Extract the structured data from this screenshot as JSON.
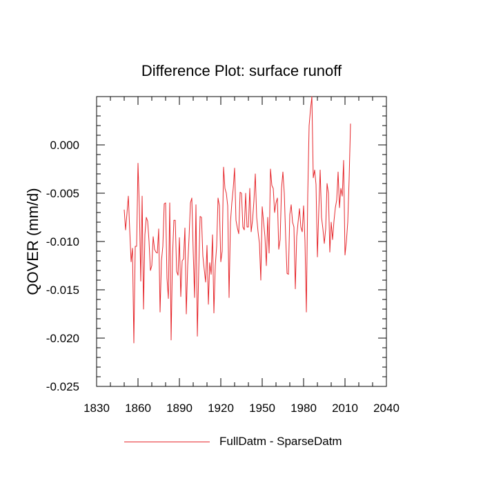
{
  "chart_data": {
    "type": "line",
    "title": "Difference Plot: surface runoff",
    "xlabel": "",
    "ylabel": "QOVER  (mm/d)",
    "xlim": [
      1830,
      2040
    ],
    "ylim": [
      -0.025,
      0.005
    ],
    "xticks": [
      1830,
      1860,
      1890,
      1920,
      1950,
      1980,
      2010,
      2040
    ],
    "yticks": [
      -0.025,
      -0.02,
      -0.015,
      -0.01,
      -0.005,
      0.0
    ],
    "ytick_labels": [
      "-0.025",
      "-0.020",
      "-0.015",
      "-0.010",
      "-0.005",
      "0.000"
    ],
    "grid": false,
    "legend_position": "bottom-center",
    "series": [
      {
        "name": "FullDatm - SparseDatm",
        "color": "#e6262b",
        "x": [
          1850,
          1851,
          1852,
          1853,
          1854,
          1855,
          1856,
          1857,
          1858,
          1859,
          1860,
          1861,
          1862,
          1863,
          1864,
          1865,
          1866,
          1867,
          1868,
          1869,
          1870,
          1871,
          1872,
          1873,
          1874,
          1875,
          1876,
          1877,
          1878,
          1879,
          1880,
          1881,
          1882,
          1883,
          1884,
          1885,
          1886,
          1887,
          1888,
          1889,
          1890,
          1891,
          1892,
          1893,
          1894,
          1895,
          1896,
          1897,
          1898,
          1899,
          1900,
          1901,
          1902,
          1903,
          1904,
          1905,
          1906,
          1907,
          1908,
          1909,
          1910,
          1911,
          1912,
          1913,
          1914,
          1915,
          1916,
          1917,
          1918,
          1919,
          1920,
          1921,
          1922,
          1923,
          1924,
          1925,
          1926,
          1927,
          1928,
          1929,
          1930,
          1931,
          1932,
          1933,
          1934,
          1935,
          1936,
          1937,
          1938,
          1939,
          1940,
          1941,
          1942,
          1943,
          1944,
          1945,
          1946,
          1947,
          1948,
          1949,
          1950,
          1951,
          1952,
          1953,
          1954,
          1955,
          1956,
          1957,
          1958,
          1959,
          1960,
          1961,
          1962,
          1963,
          1964,
          1965,
          1966,
          1967,
          1968,
          1969,
          1970,
          1971,
          1972,
          1973,
          1974,
          1975,
          1976,
          1977,
          1978,
          1979,
          1980,
          1981,
          1982,
          1983,
          1984,
          1985,
          1986,
          1987,
          1988,
          1989,
          1990,
          1991,
          1992,
          1993,
          1994,
          1995,
          1996,
          1997,
          1998,
          1999,
          2000,
          2001,
          2002,
          2003,
          2004,
          2005,
          2006,
          2007,
          2008,
          2009,
          2010,
          2011,
          2012,
          2013,
          2014
        ],
        "values": [
          -0.0067,
          -0.0088,
          -0.0071,
          -0.0053,
          -0.0088,
          -0.0121,
          -0.0107,
          -0.0205,
          -0.0105,
          -0.0105,
          -0.0019,
          -0.0065,
          -0.0141,
          -0.0053,
          -0.017,
          -0.0093,
          -0.0075,
          -0.0079,
          -0.01,
          -0.013,
          -0.0125,
          -0.0095,
          -0.0108,
          -0.0111,
          -0.0112,
          -0.0087,
          -0.0173,
          -0.012,
          -0.0105,
          -0.0061,
          -0.006,
          -0.0138,
          -0.0159,
          -0.006,
          -0.0202,
          -0.0116,
          -0.0078,
          -0.0078,
          -0.0131,
          -0.0135,
          -0.0096,
          -0.0157,
          -0.012,
          -0.0118,
          -0.0086,
          -0.0175,
          -0.0125,
          -0.0096,
          -0.006,
          -0.0055,
          -0.011,
          -0.0158,
          -0.0062,
          -0.0198,
          -0.013,
          -0.0074,
          -0.0075,
          -0.0115,
          -0.0129,
          -0.0142,
          -0.0104,
          -0.0165,
          -0.0122,
          -0.0134,
          -0.0093,
          -0.0174,
          -0.0125,
          -0.0105,
          -0.0055,
          -0.0063,
          -0.0121,
          -0.011,
          -0.0023,
          -0.0045,
          -0.005,
          -0.0063,
          -0.0158,
          -0.008,
          -0.006,
          -0.0045,
          -0.0024,
          -0.0078,
          -0.0086,
          -0.0092,
          -0.0049,
          -0.005,
          -0.0085,
          -0.0088,
          -0.005,
          -0.0085,
          -0.0085,
          -0.0045,
          -0.009,
          -0.0078,
          -0.0058,
          -0.003,
          -0.0075,
          -0.009,
          -0.0102,
          -0.014,
          -0.0064,
          -0.008,
          -0.0095,
          -0.0125,
          -0.0075,
          -0.0112,
          -0.0025,
          -0.0042,
          -0.0045,
          -0.007,
          -0.006,
          -0.0055,
          -0.0108,
          -0.0098,
          -0.0045,
          -0.0028,
          -0.005,
          -0.0095,
          -0.0133,
          -0.0134,
          -0.0072,
          -0.0062,
          -0.008,
          -0.0085,
          -0.0149,
          -0.0095,
          -0.008,
          -0.0066,
          -0.0085,
          -0.009,
          -0.0063,
          -0.01,
          -0.0173,
          -0.0052,
          0.002,
          0.0037,
          0.0052,
          -0.0034,
          -0.0026,
          -0.0041,
          -0.0116,
          -0.0068,
          -0.0026,
          -0.0075,
          -0.0087,
          -0.0102,
          -0.0087,
          -0.004,
          -0.005,
          -0.0111,
          -0.008,
          -0.0098,
          -0.0079,
          -0.0065,
          -0.0057,
          -0.0028,
          -0.0065,
          -0.0045,
          -0.0053,
          -0.0016,
          -0.0114,
          -0.01,
          -0.008,
          -0.0035,
          0.0022
        ]
      }
    ]
  }
}
